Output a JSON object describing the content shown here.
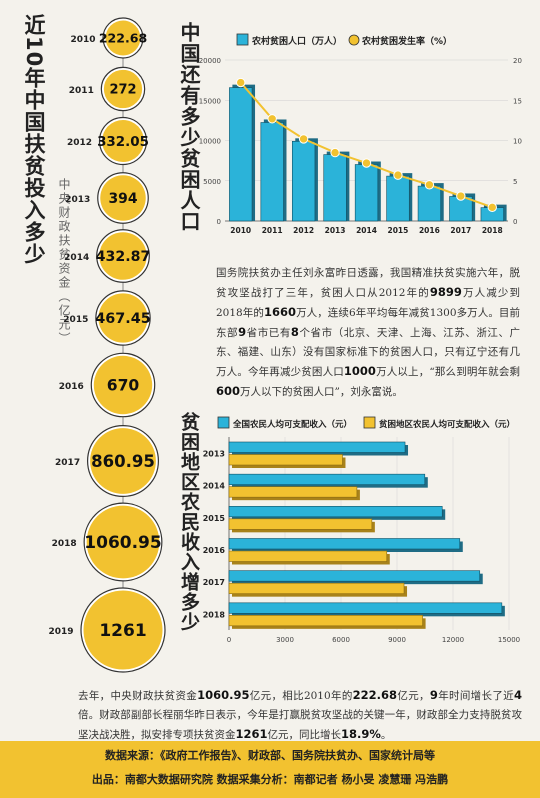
{
  "left_panel": {
    "title": "近10年中国扶贫投入多少",
    "subtitle": "中央财政扶贫资金（亿元）",
    "chart_data": {
      "type": "bubble",
      "categories": [
        "2010",
        "2011",
        "2012",
        "2013",
        "2014",
        "2015",
        "2016",
        "2017",
        "2018",
        "2019"
      ],
      "values": [
        222.68,
        272,
        332.05,
        394,
        432.87,
        467.45,
        670,
        860.95,
        1060.95,
        1261
      ],
      "labels": [
        "222.68",
        "272",
        "332.05",
        "394",
        "432.87",
        "467.45",
        "670",
        "860.95",
        "1060.95",
        "1261"
      ],
      "color": "#f2c230"
    }
  },
  "top_chart": {
    "title": "中国还有多少贫困人口",
    "chart_data": {
      "type": "bar+line",
      "categories": [
        "2010",
        "2011",
        "2012",
        "2013",
        "2014",
        "2015",
        "2016",
        "2017",
        "2018"
      ],
      "series": [
        {
          "name": "农村贫困人口（万人）",
          "type": "bar",
          "axis": "left",
          "color": "#2bb3d9",
          "values": [
            16567,
            12238,
            9899,
            8249,
            7017,
            5575,
            4335,
            3046,
            1660
          ]
        },
        {
          "name": "农村贫困发生率（%）",
          "type": "line",
          "axis": "right",
          "color": "#f2c230",
          "values": [
            17.2,
            12.7,
            10.2,
            8.5,
            7.2,
            5.7,
            4.5,
            3.1,
            1.7
          ]
        }
      ],
      "y_left": {
        "min": 0,
        "max": 20000,
        "ticks": [
          "0",
          "5000",
          "10000",
          "15000",
          "20000"
        ]
      },
      "y_right": {
        "min": 0,
        "max": 20,
        "ticks": [
          "0",
          "5",
          "10",
          "15",
          "20"
        ]
      },
      "grid": true,
      "legend": "top"
    }
  },
  "paragraph1": {
    "segments": [
      {
        "t": "国务院扶贫办主任刘永富昨日透露，我国精准扶贫实施六年，脱贫攻坚战打了三年，贫困人口从2012年的"
      },
      {
        "t": "9899",
        "b": true
      },
      {
        "t": "万人减少到2018年的"
      },
      {
        "t": "1660",
        "b": true
      },
      {
        "t": "万人，连续6年平均每年减贫1300多万人。目前东部"
      },
      {
        "t": "9",
        "b": true
      },
      {
        "t": "省市已有"
      },
      {
        "t": "8",
        "b": true
      },
      {
        "t": "个省市（北京、天津、上海、江苏、浙江、广东、福建、山东）没有国家标准下的贫困人口，只有辽宁还有几万人。今年再减少贫困人口"
      },
      {
        "t": "1000",
        "b": true
      },
      {
        "t": "万人以上，“那么到明年就会剩"
      },
      {
        "t": "600",
        "b": true
      },
      {
        "t": "万人以下的贫困人口”，刘永富说。"
      }
    ]
  },
  "bottom_chart": {
    "title": "贫困地区农民收入增多少",
    "chart_data": {
      "type": "horizontal-bar",
      "categories": [
        "2013",
        "2014",
        "2015",
        "2016",
        "2017",
        "2018"
      ],
      "series": [
        {
          "name": "全国农民人均可支配收入（元）",
          "color": "#2bb3d9",
          "values": [
            9430,
            10489,
            11422,
            12363,
            13432,
            14617
          ]
        },
        {
          "name": "贫困地区农民人均可支配收入（元）",
          "color": "#f2c230",
          "values": [
            6079,
            6852,
            7653,
            8452,
            9377,
            10371
          ]
        }
      ],
      "x": {
        "min": 0,
        "max": 15000,
        "ticks": [
          "0",
          "3000",
          "6000",
          "9000",
          "12000",
          "15000"
        ]
      },
      "legend": "top"
    }
  },
  "paragraph2": {
    "segments": [
      {
        "t": "去年，中央财政扶贫资金"
      },
      {
        "t": "1060.95",
        "b": true
      },
      {
        "t": "亿元，相比2010年的"
      },
      {
        "t": "222.68",
        "b": true
      },
      {
        "t": "亿元，"
      },
      {
        "t": "9",
        "b": true
      },
      {
        "t": "年时间增长了近"
      },
      {
        "t": "4",
        "b": true
      },
      {
        "t": "倍。财政部副部长程丽华昨日表示，今年是打赢脱贫攻坚战的关键一年，财政部全力支持脱贫攻坚决战决胜，拟安排专项扶贫资金"
      },
      {
        "t": "1261",
        "b": true
      },
      {
        "t": "亿元，同比增长"
      },
      {
        "t": "18.9%",
        "b": true
      },
      {
        "t": "。"
      }
    ]
  },
  "footer": {
    "line1": "数据来源：《政府工作报告》、财政部、国务院扶贫办、国家统计局等",
    "line2": "出品：南都大数据研究院  数据采集分析：南都记者  杨小旻  凌慧珊  冯浩鹏"
  }
}
